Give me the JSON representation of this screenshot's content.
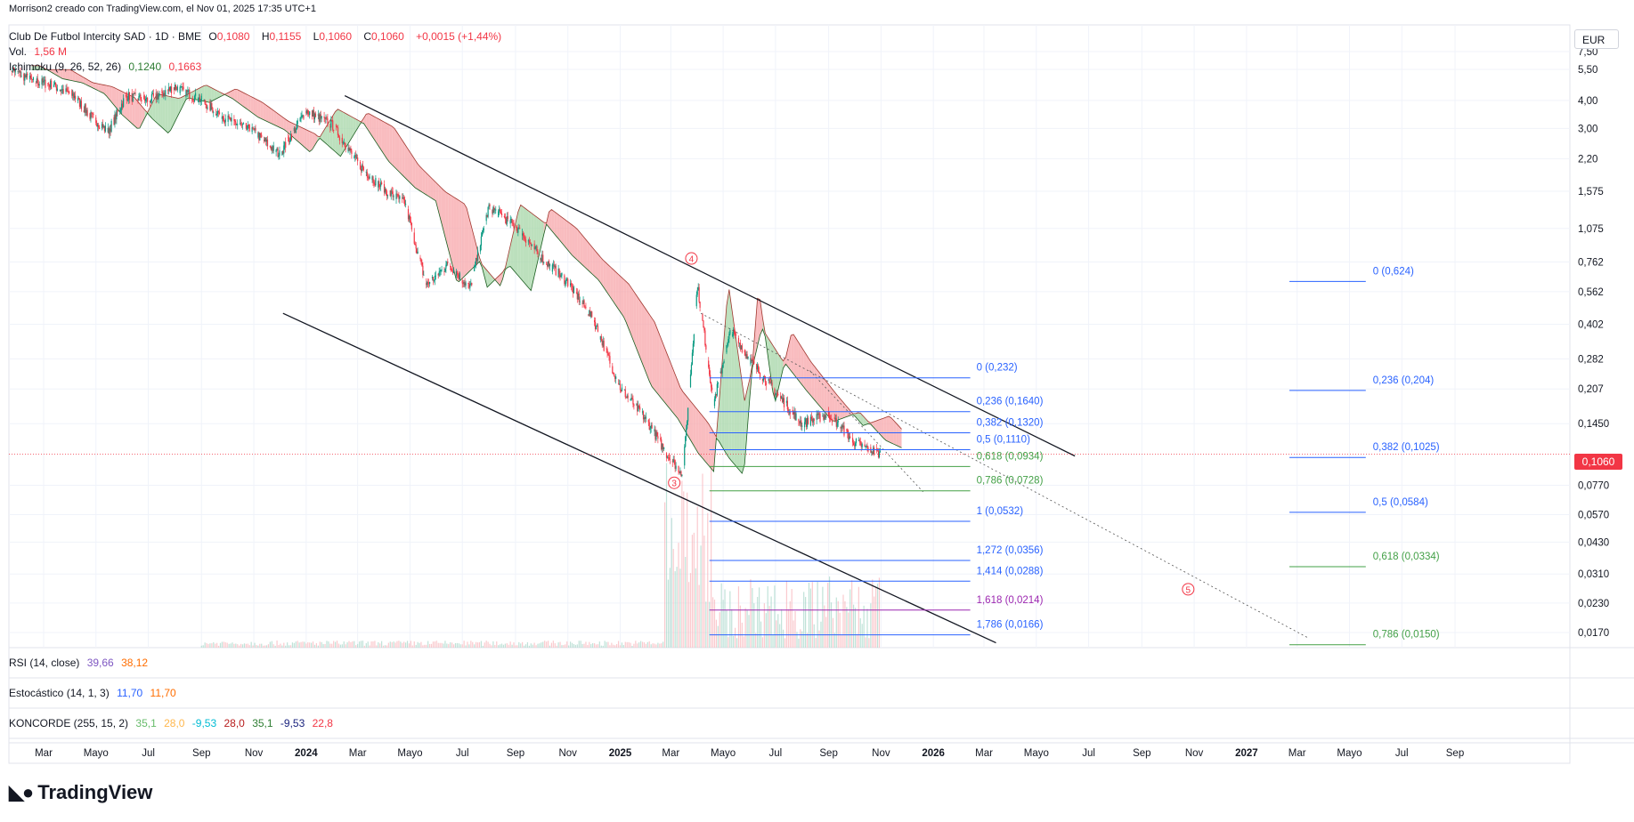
{
  "attribution": "Morrison2 creado con TradingView.com, el Nov 01, 2025 17:35 UTC+1",
  "brand": "TradingView",
  "currency": "EUR",
  "last_price": "0,1060",
  "symbol_line": {
    "name": "Club De Futbol Intercity SAD · 1D · BME",
    "o_label": "O",
    "o_val": "0,1080",
    "h_label": "H",
    "h_val": "0,1155",
    "l_label": "L",
    "l_val": "0,1060",
    "c_label": "C",
    "c_val": "0,1060",
    "change": "+0,0015 (+1,44%)"
  },
  "volume_line": {
    "label": "Vol.",
    "value": "1,56 M"
  },
  "ichimoku_line": {
    "label": "Ichimoku (9, 26, 52, 26)",
    "v1": "0,1240",
    "v2": "0,1663"
  },
  "rsi_line": {
    "label": "RSI (14, close)",
    "v1": "39,66",
    "v2": "38,12"
  },
  "stoch_line": {
    "label": "Estocástico (14, 1, 3)",
    "v1": "11,70",
    "v2": "11,70"
  },
  "koncorde_line": {
    "label": "KONCORDE (255, 15, 2)",
    "vals": [
      "35,1",
      "28,0",
      "-9,53",
      "28,0",
      "35,1",
      "-9,53",
      "22,8"
    ]
  },
  "colors": {
    "up": "#089981",
    "down": "#f23645",
    "cloud_bear": "#f7a5a9",
    "cloud_bull": "#a5d6a7",
    "fib_blue": "#2962ff",
    "fib_green": "#43a047",
    "fib_purple": "#9c27b0"
  },
  "wave_labels": [
    "4",
    "3",
    "5"
  ],
  "chart_data": {
    "type": "candlestick",
    "scale": "log",
    "y_ticks": [
      "7,50",
      "5,50",
      "4,00",
      "3,00",
      "2,20",
      "1,575",
      "1,075",
      "0,762",
      "0,562",
      "0,402",
      "0,282",
      "0,207",
      "0,1450",
      "0,1060",
      "0,0770",
      "0,0570",
      "0,0430",
      "0,0310",
      "0,0230",
      "0,0170"
    ],
    "y_tick_values": [
      7.5,
      5.5,
      4.0,
      3.0,
      2.2,
      1.575,
      1.075,
      0.762,
      0.562,
      0.402,
      0.282,
      0.207,
      0.145,
      0.106,
      0.077,
      0.057,
      0.043,
      0.031,
      0.023,
      0.017
    ],
    "x_ticks": [
      "Mar",
      "Mayo",
      "Jul",
      "Sep",
      "Nov",
      "2024",
      "Mar",
      "Mayo",
      "Jul",
      "Sep",
      "Nov",
      "2025",
      "Mar",
      "Mayo",
      "Jul",
      "Sep",
      "Nov",
      "2026",
      "Mar",
      "Mayo",
      "Jul",
      "Sep",
      "Nov",
      "2027",
      "Mar",
      "Mayo",
      "Jul",
      "Sep"
    ],
    "x_tick_dates": [
      "2023-03-01",
      "2023-05-01",
      "2023-07-01",
      "2023-09-01",
      "2023-11-01",
      "2024-01-01",
      "2024-03-01",
      "2024-05-01",
      "2024-07-01",
      "2024-09-01",
      "2024-11-01",
      "2025-01-01",
      "2025-03-01",
      "2025-05-01",
      "2025-07-01",
      "2025-09-01",
      "2025-11-01",
      "2026-01-01",
      "2026-03-01",
      "2026-05-01",
      "2026-07-01",
      "2026-09-01",
      "2026-11-01",
      "2027-01-01",
      "2027-03-01",
      "2027-05-01",
      "2027-07-01",
      "2027-09-01"
    ],
    "price_path": [
      [
        "2023-01-20",
        5.6
      ],
      [
        "2023-02-15",
        4.9
      ],
      [
        "2023-03-10",
        4.7
      ],
      [
        "2023-04-05",
        4.2
      ],
      [
        "2023-04-25",
        3.4
      ],
      [
        "2023-05-15",
        2.9
      ],
      [
        "2023-06-05",
        4.2
      ],
      [
        "2023-07-01",
        4.0
      ],
      [
        "2023-08-01",
        4.6
      ],
      [
        "2023-09-01",
        4.0
      ],
      [
        "2023-10-01",
        3.3
      ],
      [
        "2023-11-01",
        2.9
      ],
      [
        "2023-12-01",
        2.3
      ],
      [
        "2024-01-01",
        3.6
      ],
      [
        "2024-02-01",
        3.1
      ],
      [
        "2024-03-01",
        2.1
      ],
      [
        "2024-04-01",
        1.6
      ],
      [
        "2024-04-25",
        1.4
      ],
      [
        "2024-05-20",
        0.6
      ],
      [
        "2024-06-15",
        0.75
      ],
      [
        "2024-07-10",
        0.58
      ],
      [
        "2024-08-01",
        1.35
      ],
      [
        "2024-09-01",
        1.1
      ],
      [
        "2024-10-01",
        0.8
      ],
      [
        "2024-11-01",
        0.62
      ],
      [
        "2024-12-01",
        0.42
      ],
      [
        "2025-01-01",
        0.21
      ],
      [
        "2025-02-01",
        0.15
      ],
      [
        "2025-02-25",
        0.105
      ],
      [
        "2025-03-15",
        0.087
      ],
      [
        "2025-04-01",
        0.6
      ],
      [
        "2025-04-20",
        0.18
      ],
      [
        "2025-05-10",
        0.38
      ],
      [
        "2025-06-01",
        0.28
      ],
      [
        "2025-07-01",
        0.2
      ],
      [
        "2025-08-01",
        0.145
      ],
      [
        "2025-09-01",
        0.16
      ],
      [
        "2025-10-01",
        0.12
      ],
      [
        "2025-10-31",
        0.106
      ]
    ],
    "upper_channel": [
      [
        "2024-02-15",
        4.2
      ],
      [
        "2026-06-15",
        0.104
      ]
    ],
    "lower_channel": [
      [
        "2023-12-05",
        0.45
      ],
      [
        "2026-03-15",
        0.0153
      ]
    ],
    "fib_levels": [
      {
        "label": "0 (0,232)",
        "value": 0.232,
        "color": "blue"
      },
      {
        "label": "0,236 (0,1640)",
        "value": 0.164,
        "color": "blue"
      },
      {
        "label": "0,382 (0,1320)",
        "value": 0.132,
        "color": "blue"
      },
      {
        "label": "0,5 (0,1110)",
        "value": 0.111,
        "color": "blue"
      },
      {
        "label": "0,618 (0,0934)",
        "value": 0.0934,
        "color": "green"
      },
      {
        "label": "0,786 (0,0728)",
        "value": 0.0728,
        "color": "green"
      },
      {
        "label": "1 (0,0532)",
        "value": 0.0532,
        "color": "blue"
      },
      {
        "label": "1,272 (0,0356)",
        "value": 0.0356,
        "color": "blue"
      },
      {
        "label": "1,414 (0,0288)",
        "value": 0.0288,
        "color": "blue"
      },
      {
        "label": "1,618 (0,0214)",
        "value": 0.0214,
        "color": "purple"
      },
      {
        "label": "1,786 (0,0166)",
        "value": 0.0166,
        "color": "blue"
      }
    ],
    "fib_levels_2": [
      {
        "label": "0 (0,624)",
        "value": 0.624,
        "color": "blue"
      },
      {
        "label": "0,236 (0,204)",
        "value": 0.204,
        "color": "blue"
      },
      {
        "label": "0,382 (0,1025)",
        "value": 0.1025,
        "color": "blue"
      },
      {
        "label": "0,5 (0,0584)",
        "value": 0.0584,
        "color": "blue"
      },
      {
        "label": "0,618 (0,0334)",
        "value": 0.0334,
        "color": "green"
      },
      {
        "label": "0,786 (0,0150)",
        "value": 0.015,
        "color": "green"
      }
    ]
  }
}
